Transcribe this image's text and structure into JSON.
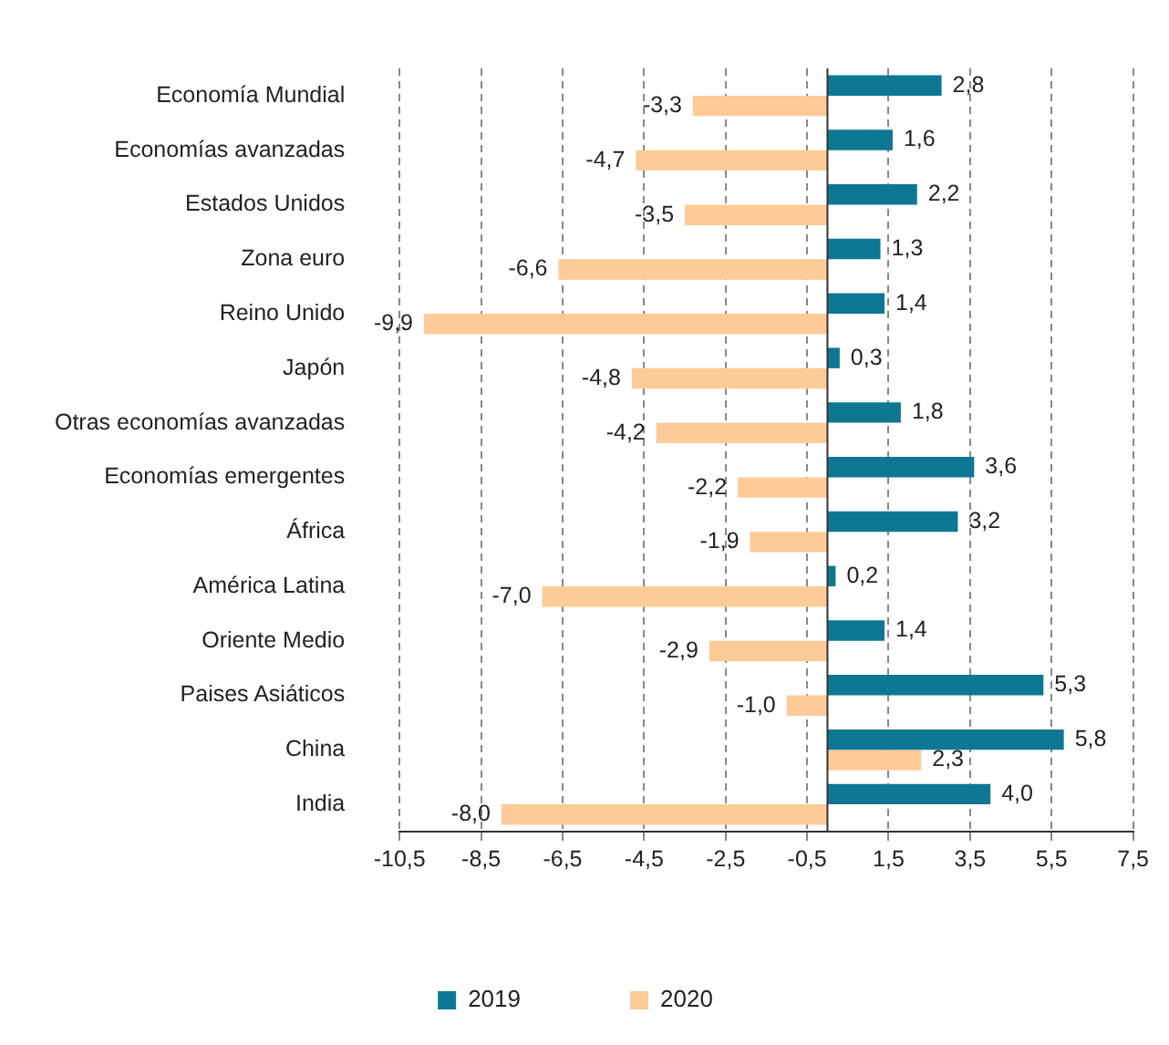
{
  "chart_data": {
    "type": "bar",
    "orientation": "horizontal",
    "categories": [
      "Economía Mundial",
      "Economías avanzadas",
      "Estados Unidos",
      "Zona euro",
      "Reino Unido",
      "Japón",
      "Otras economías avanzadas",
      "Economías emergentes",
      "África",
      "América Latina",
      "Oriente Medio",
      "Paises Asiáticos",
      "China",
      "India"
    ],
    "series": [
      {
        "name": "2019",
        "color": "#0e7894",
        "values": [
          2.8,
          1.6,
          2.2,
          1.3,
          1.4,
          0.3,
          1.8,
          3.6,
          3.2,
          0.2,
          1.4,
          5.3,
          5.8,
          4.0
        ],
        "value_labels": [
          "2,8",
          "1,6",
          "2,2",
          "1,3",
          "1,4",
          "0,3",
          "1,8",
          "3,6",
          "3,2",
          "0,2",
          "1,4",
          "5,3",
          "5,8",
          "4,0"
        ]
      },
      {
        "name": "2020",
        "color": "#fccb98",
        "values": [
          -3.3,
          -4.7,
          -3.5,
          -6.6,
          -9.9,
          -4.8,
          -4.2,
          -2.2,
          -1.9,
          -7.0,
          -2.9,
          -1.0,
          2.3,
          -8.0
        ],
        "value_labels": [
          "-3,3",
          "-4,7",
          "-3,5",
          "-6,6",
          "-9,9",
          "-4,8",
          "-4,2",
          "-2,2",
          "-1,9",
          "-7,0",
          "-2,9",
          "-1,0",
          "2,3",
          "-8,0"
        ]
      }
    ],
    "xlim": [
      -10.5,
      7.5
    ],
    "xticks": [
      {
        "value": -10.5,
        "label": "-10,5"
      },
      {
        "value": -8.5,
        "label": "-8,5"
      },
      {
        "value": -6.5,
        "label": "-6,5"
      },
      {
        "value": -4.5,
        "label": "-4,5"
      },
      {
        "value": -2.5,
        "label": "-2,5"
      },
      {
        "value": -0.5,
        "label": "-0,5"
      },
      {
        "value": 1.5,
        "label": "1,5"
      },
      {
        "value": 3.5,
        "label": "3,5"
      },
      {
        "value": 5.5,
        "label": "5,5"
      },
      {
        "value": 7.5,
        "label": "7,5"
      }
    ],
    "grid": "x",
    "legend": "bottom"
  }
}
